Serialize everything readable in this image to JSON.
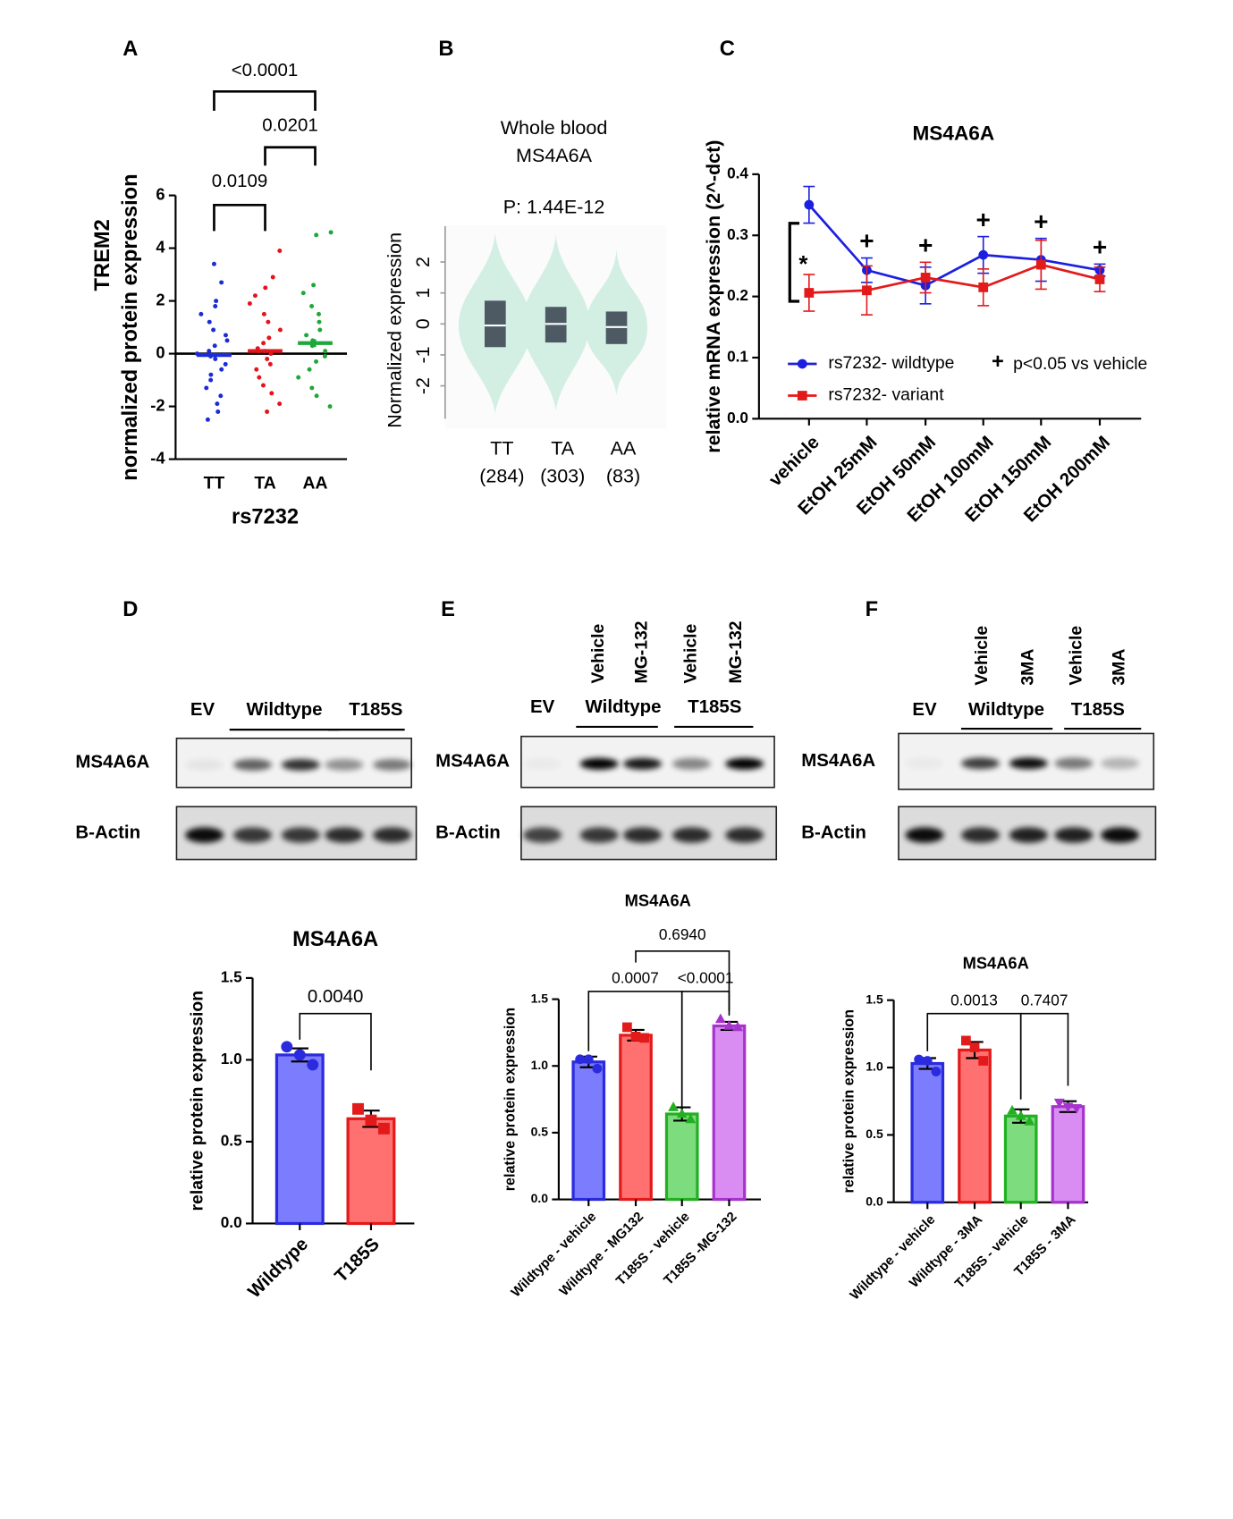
{
  "chart_data": [
    {
      "type": "strip",
      "panel": "A",
      "ylabel": "TREM2",
      "ylabel2": "normalized protein expression",
      "xlabel": "rs7232",
      "categories": [
        "TT",
        "TA",
        "AA"
      ],
      "colors": [
        "#1c2bd6",
        "#e3141b",
        "#1fa83a"
      ],
      "points": [
        [
          3.4,
          2.7,
          2.0,
          1.8,
          1.5,
          1.2,
          0.9,
          0.7,
          0.5,
          0.3,
          0.1,
          0.0,
          -0.1,
          -0.2,
          -0.4,
          -0.6,
          -0.8,
          -1.0,
          -1.3,
          -1.6,
          -1.9,
          -2.2,
          -2.5
        ],
        [
          3.9,
          2.9,
          2.5,
          2.2,
          1.9,
          1.5,
          1.2,
          0.9,
          0.6,
          0.4,
          0.2,
          0.1,
          0.0,
          -0.2,
          -0.4,
          -0.6,
          -0.9,
          -1.2,
          -1.5,
          -1.9,
          -2.2
        ],
        [
          4.6,
          4.5,
          2.6,
          2.3,
          1.8,
          1.5,
          1.2,
          0.9,
          0.7,
          0.5,
          0.3,
          0.1,
          -0.1,
          -0.3,
          -0.6,
          -0.9,
          -1.3,
          -1.6,
          -2.0
        ]
      ],
      "means": [
        -0.05,
        0.1,
        0.4
      ],
      "errors": [
        0.08,
        0.08,
        0.15
      ],
      "ylim": [
        -4,
        6
      ],
      "yticks": [
        -4,
        -2,
        0,
        2,
        4,
        6
      ],
      "comparisons": [
        "<0.0001",
        "0.0109",
        "0.0201"
      ]
    },
    {
      "type": "violin",
      "panel": "B",
      "title": "Whole blood",
      "subtitle": "MS4A6A",
      "annotation": "P: 1.44E-12",
      "ylabel": "Normalized expression",
      "categories": [
        "TT",
        "TA",
        "AA"
      ],
      "counts": [
        "(284)",
        "(303)",
        "(83)"
      ],
      "q1": [
        -0.75,
        -0.6,
        -0.65
      ],
      "median": [
        -0.05,
        0.0,
        -0.1
      ],
      "q3": [
        0.75,
        0.55,
        0.4
      ],
      "min": [
        -2.9,
        -2.8,
        -2.3
      ],
      "max": [
        2.95,
        2.9,
        2.4
      ],
      "color": "#d3efe3",
      "box_color": "#4d5a63",
      "ylim": [
        -3,
        3
      ],
      "yticks": [
        -2,
        -1,
        0,
        1,
        2
      ]
    },
    {
      "type": "line",
      "panel": "C",
      "title": "MS4A6A",
      "ylabel": "relative mRNA expression (2^-dct)",
      "categories": [
        "vehicle",
        "EtOH 25mM",
        "EtOH 50mM",
        "EtOH 100mM",
        "EtOH 150mM",
        "EtOH 200mM"
      ],
      "series": [
        {
          "name": "rs7232- wildtype",
          "color": "#1b1fe0",
          "marker": "circle",
          "values": [
            0.35,
            0.243,
            0.218,
            0.268,
            0.26,
            0.243
          ],
          "errors": [
            0.03,
            0.02,
            0.03,
            0.03,
            0.035,
            0.01
          ]
        },
        {
          "name": "rs7232- variant",
          "color": "#e31a1a",
          "marker": "square",
          "values": [
            0.206,
            0.21,
            0.231,
            0.215,
            0.252,
            0.228
          ],
          "errors": [
            0.03,
            0.04,
            0.025,
            0.03,
            0.04,
            0.02
          ]
        }
      ],
      "significance_marks": [
        null,
        "+",
        "+",
        "+",
        "+",
        "+"
      ],
      "vehicle_mark": "*",
      "legend_note": {
        "symbol": "+",
        "label": "p<0.05 vs vehicle"
      },
      "ylim": [
        0,
        0.4
      ],
      "yticks": [
        {
          "value": 0,
          "label": "0.0"
        },
        0.1,
        0.2,
        0.3,
        0.4
      ]
    },
    {
      "type": "blot",
      "panel": "D",
      "groups": [
        "EV",
        "Wildtype",
        "T185S"
      ],
      "rows": [
        "MS4A6A",
        "B-Actin"
      ]
    },
    {
      "type": "bar",
      "title": "MS4A6A",
      "ylabel": "relative protein expression",
      "categories": [
        "Wildtype",
        "T185S"
      ],
      "values": [
        1.03,
        0.64
      ],
      "errors": [
        0.04,
        0.05
      ],
      "points": [
        [
          1.08,
          1.03,
          0.97
        ],
        [
          0.7,
          0.63,
          0.58
        ]
      ],
      "fills": [
        "#7c7cff",
        "#ff7070"
      ],
      "colors": [
        "#2b2bde",
        "#e31a1a"
      ],
      "markers": [
        "circle",
        "square"
      ],
      "ylim": [
        0,
        1.5
      ],
      "yticks": [
        {
          "value": 0,
          "label": "0.0"
        },
        {
          "value": 0.5,
          "label": "0.5"
        },
        {
          "value": 1,
          "label": "1.0"
        },
        {
          "value": 1.5,
          "label": "1.5"
        }
      ],
      "comparisons": [
        "0.0040"
      ]
    },
    {
      "type": "blot",
      "panel": "E",
      "conditions": [
        "Vehicle",
        "MG-132",
        "Vehicle",
        "MG-132"
      ],
      "groups": [
        "EV",
        "Wildtype",
        "T185S"
      ],
      "rows": [
        "MS4A6A",
        "B-Actin"
      ]
    },
    {
      "type": "bar",
      "title": "MS4A6A",
      "ylabel": "relative protein expression",
      "categories": [
        "Wildtype - vehicle",
        "Wildtype - MG132",
        "T185S - vehicle",
        "T185S -MG-132"
      ],
      "values": [
        1.03,
        1.23,
        0.64,
        1.3
      ],
      "errors": [
        0.04,
        0.04,
        0.05,
        0.03
      ],
      "points": [
        [
          1.05,
          1.05,
          0.98
        ],
        [
          1.29,
          1.22,
          1.21
        ],
        [
          0.69,
          0.64,
          0.6
        ],
        [
          1.35,
          1.3,
          1.29
        ]
      ],
      "fills": [
        "#7c7cff",
        "#ff7070",
        "#7ddc7d",
        "#d98cf2"
      ],
      "colors": [
        "#2b2bde",
        "#e31a1a",
        "#22b022",
        "#a633cc"
      ],
      "markers": [
        "circle",
        "square",
        "triangle",
        "triangle"
      ],
      "ylim": [
        0,
        1.5
      ],
      "yticks": [
        {
          "value": 0,
          "label": "0.0"
        },
        {
          "value": 0.5,
          "label": "0.5"
        },
        {
          "value": 1,
          "label": "1.0"
        },
        {
          "value": 1.5,
          "label": "1.5"
        }
      ],
      "comparisons": [
        "0.6940",
        "0.0007",
        "<0.0001"
      ]
    },
    {
      "type": "blot",
      "panel": "F",
      "conditions": [
        "Vehicle",
        "3MA",
        "Vehicle",
        "3MA"
      ],
      "groups": [
        "EV",
        "Wildtype",
        "T185S"
      ],
      "rows": [
        "MS4A6A",
        "B-Actin"
      ]
    },
    {
      "type": "bar",
      "title": "MS4A6A",
      "ylabel": "relative protein expression",
      "categories": [
        "Wildtype - vehicle",
        "Wildtype - 3MA",
        "T185S - vehicle",
        "T185S - 3MA"
      ],
      "values": [
        1.03,
        1.13,
        0.64,
        0.71
      ],
      "errors": [
        0.04,
        0.06,
        0.05,
        0.04
      ],
      "points": [
        [
          1.06,
          1.05,
          0.97
        ],
        [
          1.2,
          1.15,
          1.05
        ],
        [
          0.68,
          0.64,
          0.6
        ],
        [
          0.74,
          0.71,
          0.7
        ]
      ],
      "fills": [
        "#7c7cff",
        "#ff7070",
        "#7ddc7d",
        "#d98cf2"
      ],
      "colors": [
        "#2b2bde",
        "#e31a1a",
        "#22b022",
        "#a633cc"
      ],
      "markers": [
        "circle",
        "square",
        "triangle",
        "triangle-down"
      ],
      "ylim": [
        0,
        1.5
      ],
      "yticks": [
        {
          "value": 0,
          "label": "0.0"
        },
        {
          "value": 0.5,
          "label": "0.5"
        },
        {
          "value": 1,
          "label": "1.0"
        },
        {
          "value": 1.5,
          "label": "1.5"
        }
      ],
      "comparisons": [
        "0.0013",
        "0.7407"
      ]
    }
  ]
}
